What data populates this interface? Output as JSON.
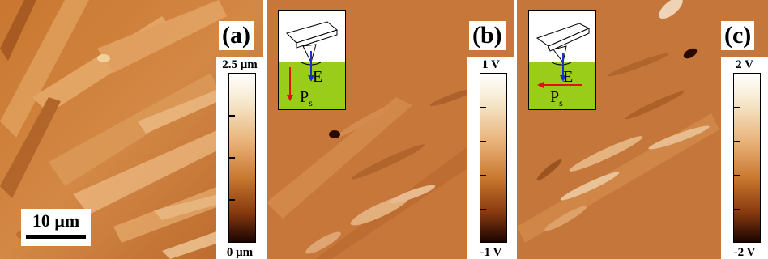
{
  "panels": [
    {
      "label": "(a)",
      "colorbar": {
        "top": "2.5 μm",
        "bottom": "0 μm"
      },
      "scalebar": "10 μm"
    },
    {
      "label": "(b)",
      "colorbar": {
        "top": "1 V",
        "bottom": "-1 V"
      },
      "inset": {
        "field_label": "E",
        "polarization_label": "P",
        "polarization_subscript": "s",
        "polarization_direction": "vertical-down"
      }
    },
    {
      "label": "(c)",
      "colorbar": {
        "top": "2 V",
        "bottom": "-2 V"
      },
      "inset": {
        "field_label": "E",
        "polarization_label": "P",
        "polarization_subscript": "s",
        "polarization_direction": "horizontal-left"
      }
    }
  ],
  "colors": {
    "sample_green": "#9acd1a",
    "field_arrow": "#1a2fd0",
    "polarization_arrow": "#e01010",
    "map_mid": "#c77a3a"
  }
}
